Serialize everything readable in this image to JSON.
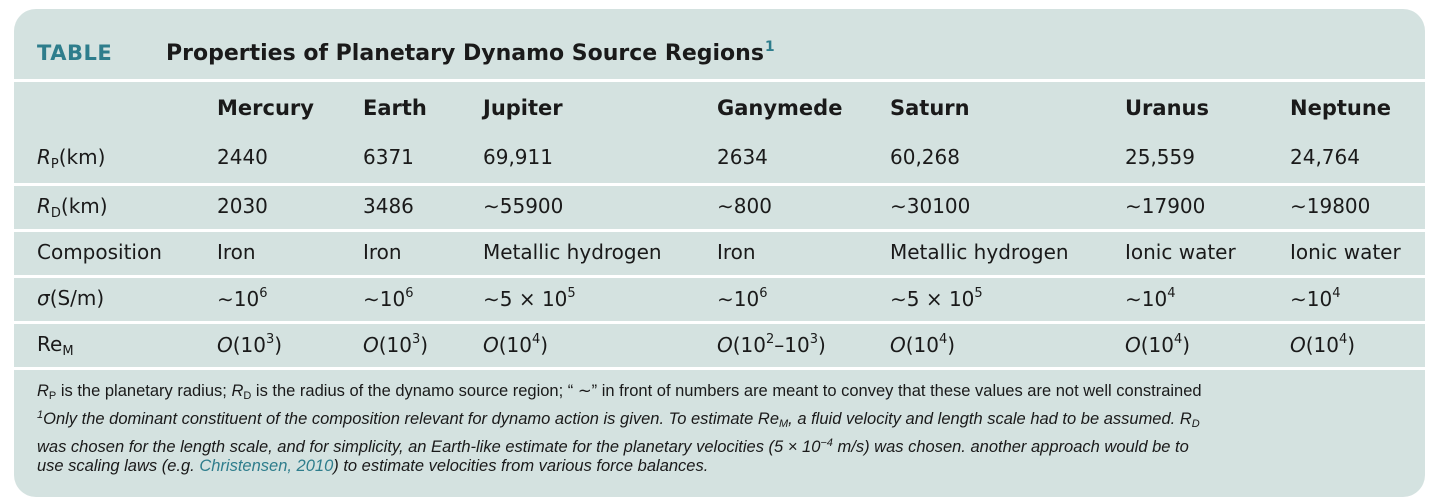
{
  "table": {
    "label": "TABLE",
    "title": "Properties of Planetary Dynamo Source Regions",
    "title_footnote_marker": "1",
    "columns": [
      "Mercury",
      "Earth",
      "Jupiter",
      "Ganymede",
      "Saturn",
      "Uranus",
      "Neptune"
    ],
    "rows": {
      "rp": {
        "symbol": "R",
        "subscript": "P",
        "unit": "(km)",
        "values": [
          "2440",
          "6371",
          "69,911",
          "2634",
          "60,268",
          "25,559",
          "24,764"
        ]
      },
      "rd": {
        "symbol": "R",
        "subscript": "D",
        "unit": "(km)",
        "values": [
          "2030",
          "3486",
          "∼55900",
          "∼800",
          "∼30100",
          "∼17900",
          "∼19800"
        ]
      },
      "composition": {
        "label": "Composition",
        "values": [
          "Iron",
          "Iron",
          "Metallic hydrogen",
          "Iron",
          "Metallic hydrogen",
          "Ionic water",
          "Ionic water"
        ]
      },
      "sigma": {
        "symbol": "σ",
        "unit": "(S/m)",
        "values": [
          {
            "base": "∼10",
            "exp": "6"
          },
          {
            "base": "∼10",
            "exp": "6"
          },
          {
            "base": "∼5 × 10",
            "exp": "5"
          },
          {
            "base": "∼10",
            "exp": "6"
          },
          {
            "base": "∼5 × 10",
            "exp": "5"
          },
          {
            "base": "∼10",
            "exp": "4"
          },
          {
            "base": "∼10",
            "exp": "4"
          }
        ]
      },
      "rem": {
        "symbol": "Re",
        "subscript": "M",
        "values": [
          {
            "pre": "O",
            "inner": "(10",
            "exp": "3",
            "post": ")"
          },
          {
            "pre": "O",
            "inner": "(10",
            "exp": "3",
            "post": ")"
          },
          {
            "pre": "O",
            "inner": "(10",
            "exp": "4",
            "post": ")"
          },
          {
            "pre": "O",
            "inner": "(10",
            "exp": "2",
            "mid": "–10",
            "exp2": "3",
            "post": ")"
          },
          {
            "pre": "O",
            "inner": "(10",
            "exp": "4",
            "post": ")"
          },
          {
            "pre": "O",
            "inner": "(10",
            "exp": "4",
            "post": ")"
          },
          {
            "pre": "O",
            "inner": "(10",
            "exp": "4",
            "post": ")"
          }
        ]
      }
    },
    "footnote": {
      "line1": {
        "rp_symbol": "R",
        "rp_sub": "P",
        "a": " is the planetary radius; ",
        "rd_symbol": "R",
        "rd_sub": "D",
        "b": " is the radius of the dynamo source region; “ ∼” in front of numbers are meant to convey that these values are not well constrained"
      },
      "line2": {
        "marker": "1",
        "a": "Only the dominant constituent of the composition relevant for dynamo action is given. To estimate Re",
        "a_sub": "M",
        "b": ", a fluid velocity and length scale had to be assumed. R",
        "b_sub": "D"
      },
      "line3": {
        "a": "was chosen for the length scale, and for simplicity, an Earth-like estimate for the planetary velocities (5 × 10",
        "exp": "−4",
        "b": " m/s) was chosen. another approach would be to"
      },
      "line4": {
        "a": "use scaling laws (e.g. ",
        "link": "Christensen, 2010",
        "b": ") to estimate velocities from various force balances."
      }
    }
  },
  "colors": {
    "background": "#d4e2e0",
    "accent": "#2e7d8c",
    "divider": "#ffffff"
  }
}
